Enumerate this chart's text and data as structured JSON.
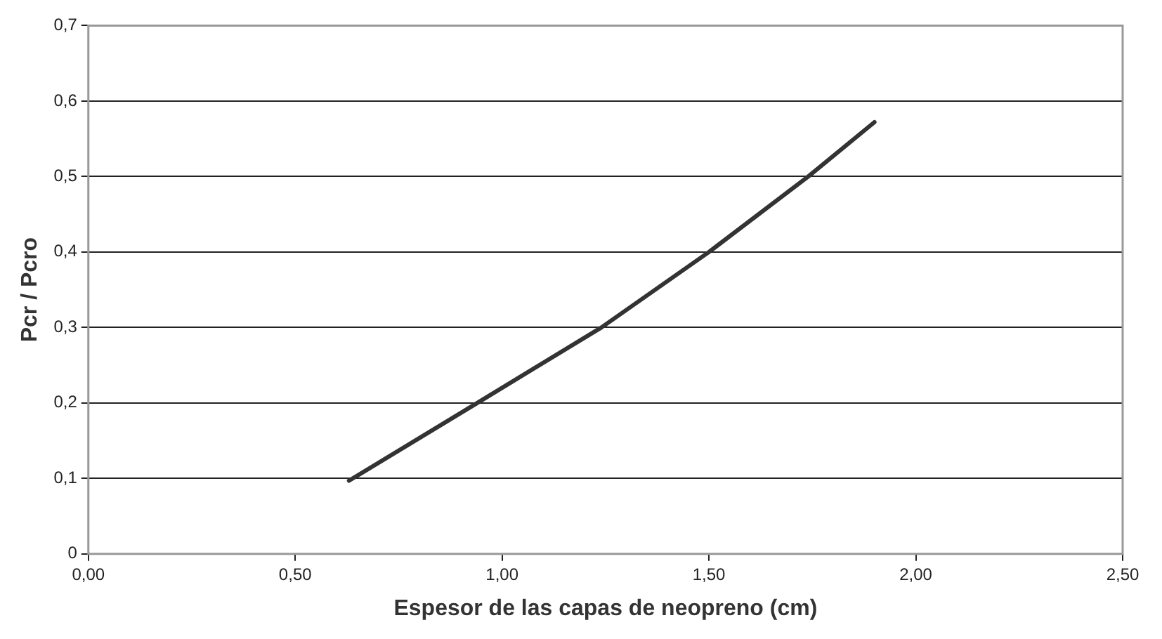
{
  "chart_data": {
    "type": "line",
    "xlabel": "Espesor de las capas de neopreno (cm)",
    "ylabel": "Pcr / Pcro",
    "x": [
      0.63,
      0.94,
      1.24,
      1.5,
      1.74,
      1.9
    ],
    "series": [
      {
        "color": "#333333",
        "values": [
          0.097,
          0.2,
          0.3,
          0.4,
          0.5,
          0.572
        ]
      }
    ],
    "xlim": [
      0,
      2.5
    ],
    "xticks": [
      {
        "value": 0,
        "label": "0,00"
      },
      {
        "value": 0.5,
        "label": "0,50"
      },
      {
        "value": 1,
        "label": "1,00"
      },
      {
        "value": 1.5,
        "label": "1,50"
      },
      {
        "value": 2,
        "label": "2,00"
      },
      {
        "value": 2.5,
        "label": "2,50"
      }
    ],
    "ylim": [
      0,
      0.7
    ],
    "yticks": [
      0,
      {
        "value": 0.1,
        "label": "0,1"
      },
      {
        "value": 0.2,
        "label": "0,2"
      },
      {
        "value": 0.3,
        "label": "0,3"
      },
      {
        "value": 0.4,
        "label": "0,4"
      },
      {
        "value": 0.5,
        "label": "0,5"
      },
      {
        "value": 0.6,
        "label": "0,6"
      },
      {
        "value": 0.7,
        "label": "0,7"
      }
    ],
    "grid": "y",
    "legend": false,
    "marker": "none",
    "line_style": "solid"
  }
}
